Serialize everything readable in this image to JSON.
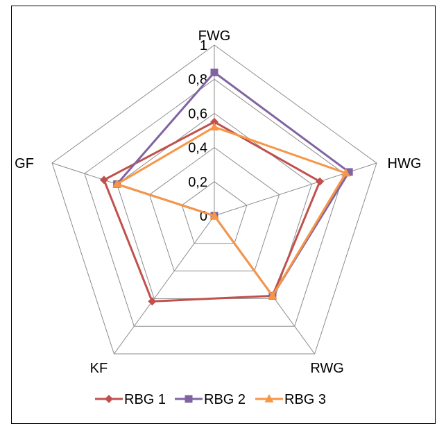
{
  "chart_data": {
    "type": "radar",
    "title": "",
    "axes": [
      "FWG",
      "HWG",
      "RWG",
      "KF",
      "GF"
    ],
    "scale": {
      "min": 0,
      "max": 1,
      "ticks": [
        0,
        0.2,
        0.4,
        0.6,
        0.8,
        1
      ],
      "tick_labels": [
        "0",
        "0,2",
        "0,4",
        "0,6",
        "0,8",
        "1"
      ]
    },
    "grid": true,
    "legend_position": "bottom",
    "series": [
      {
        "name": "RBG 1",
        "values": [
          0.55,
          0.65,
          0.58,
          0.62,
          0.68
        ],
        "color": "#c0504d",
        "marker": "diamond"
      },
      {
        "name": "RBG 2",
        "values": [
          0.84,
          0.83,
          0.58,
          0.0,
          0.6
        ],
        "color": "#8064a2",
        "marker": "square"
      },
      {
        "name": "RBG 3",
        "values": [
          0.52,
          0.81,
          0.58,
          0.0,
          0.6
        ],
        "color": "#f79646",
        "marker": "triangle"
      }
    ]
  }
}
